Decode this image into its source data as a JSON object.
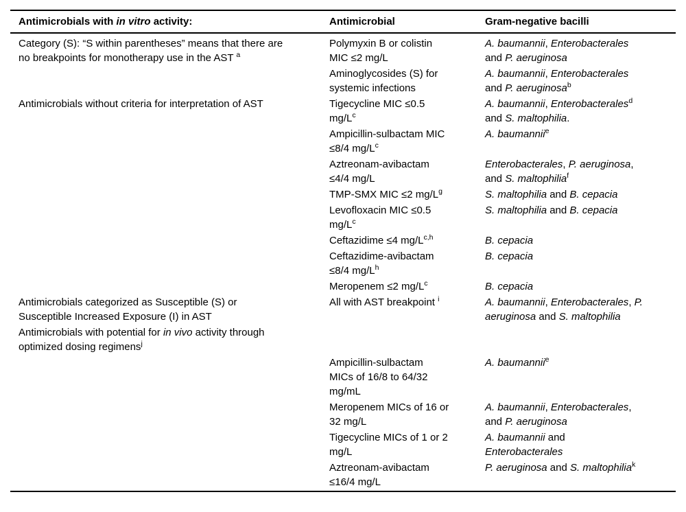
{
  "table": {
    "headers": [
      [
        {
          "t": "Antimicrobials with "
        },
        {
          "t": "in vitro",
          "i": true
        },
        {
          "t": " activity:"
        }
      ],
      [
        {
          "t": "Antimicrobial"
        }
      ],
      [
        {
          "t": "Gram-negative bacilli"
        }
      ]
    ],
    "groups": [
      {
        "label_paragraphs": [
          [
            {
              "t": "Category (S): “S within parentheses” means that there are"
            },
            {
              "br": true
            },
            {
              "t": "no breakpoints for monotherapy use in the AST "
            },
            {
              "t": "a",
              "sup": true
            }
          ]
        ],
        "rows": [
          {
            "antimicrobial": [
              {
                "t": "Polymyxin B or colistin"
              },
              {
                "br": true
              },
              {
                "t": "MIC ≤2 mg/L"
              }
            ],
            "bacilli": [
              {
                "t": "A. baumannii",
                "i": true
              },
              {
                "t": ", "
              },
              {
                "t": "Enterobacterales",
                "i": true
              },
              {
                "br": true
              },
              {
                "t": "and "
              },
              {
                "t": "P. aeruginosa",
                "i": true
              }
            ]
          },
          {
            "antimicrobial": [
              {
                "t": "Aminoglycosides (S) for"
              },
              {
                "br": true
              },
              {
                "t": "systemic infections"
              }
            ],
            "bacilli": [
              {
                "t": "A. baumannii",
                "i": true
              },
              {
                "t": ", "
              },
              {
                "t": "Enterobacterales",
                "i": true
              },
              {
                "br": true
              },
              {
                "t": "and "
              },
              {
                "t": "P. aeruginosa",
                "i": true
              },
              {
                "t": "b",
                "sup": true
              }
            ]
          }
        ]
      },
      {
        "label_paragraphs": [
          [
            {
              "t": "Antimicrobials without criteria for interpretation of AST"
            }
          ]
        ],
        "rows": [
          {
            "antimicrobial": [
              {
                "t": "Tigecycline MIC ≤0.5"
              },
              {
                "br": true
              },
              {
                "t": "mg/L"
              },
              {
                "t": "c",
                "sup": true
              }
            ],
            "bacilli": [
              {
                "t": "A. baumannii",
                "i": true
              },
              {
                "t": ", "
              },
              {
                "t": "Enterobacterales",
                "i": true
              },
              {
                "t": "d",
                "sup": true
              },
              {
                "br": true
              },
              {
                "t": "and "
              },
              {
                "t": "S. maltophilia",
                "i": true
              },
              {
                "t": "."
              }
            ]
          },
          {
            "antimicrobial": [
              {
                "t": "Ampicillin-sulbactam MIC"
              },
              {
                "br": true
              },
              {
                "t": "≤8/4 mg/L"
              },
              {
                "t": "c",
                "sup": true
              }
            ],
            "bacilli": [
              {
                "t": "A. baumannii",
                "i": true
              },
              {
                "t": "e",
                "sup": true
              }
            ]
          },
          {
            "antimicrobial": [
              {
                "t": "Aztreonam-avibactam"
              },
              {
                "br": true
              },
              {
                "t": "≤4/4 mg/L"
              }
            ],
            "bacilli": [
              {
                "t": "Enterobacterales",
                "i": true
              },
              {
                "t": ", "
              },
              {
                "t": "P. aeruginosa",
                "i": true
              },
              {
                "t": ","
              },
              {
                "br": true
              },
              {
                "t": "and "
              },
              {
                "t": "S. maltophilia",
                "i": true
              },
              {
                "t": "f",
                "sup": true
              }
            ]
          },
          {
            "antimicrobial": [
              {
                "t": "TMP-SMX MIC ≤2 mg/L"
              },
              {
                "t": "g",
                "sup": true
              }
            ],
            "bacilli": [
              {
                "t": "S. maltophilia",
                "i": true
              },
              {
                "t": " and "
              },
              {
                "t": "B. cepacia",
                "i": true
              }
            ]
          },
          {
            "antimicrobial": [
              {
                "t": "Levofloxacin MIC ≤0.5"
              },
              {
                "br": true
              },
              {
                "t": "mg/L"
              },
              {
                "t": "c",
                "sup": true
              }
            ],
            "bacilli": [
              {
                "t": "S. maltophilia",
                "i": true
              },
              {
                "t": " and "
              },
              {
                "t": "B. cepacia",
                "i": true
              }
            ]
          },
          {
            "antimicrobial": [
              {
                "t": "Ceftazidime ≤4 mg/L"
              },
              {
                "t": "c,h",
                "sup": true
              }
            ],
            "bacilli": [
              {
                "t": "B. cepacia",
                "i": true
              }
            ]
          },
          {
            "antimicrobial": [
              {
                "t": "Ceftazidime-avibactam"
              },
              {
                "br": true
              },
              {
                "t": "≤8/4 mg/L"
              },
              {
                "t": "h",
                "sup": true
              }
            ],
            "bacilli": [
              {
                "t": "B. cepacia",
                "i": true
              }
            ]
          },
          {
            "antimicrobial": [
              {
                "t": "Meropenem ≤2 mg/L"
              },
              {
                "t": "c",
                "sup": true
              }
            ],
            "bacilli": [
              {
                "t": "B. cepacia",
                "i": true
              }
            ]
          }
        ]
      },
      {
        "label_paragraphs": [
          [
            {
              "t": "Antimicrobials categorized as Susceptible (S) or"
            },
            {
              "br": true
            },
            {
              "t": "Susceptible Increased Exposure (I) in AST"
            }
          ],
          [
            {
              "t": "Antimicrobials with potential for "
            },
            {
              "t": "in vivo",
              "i": true
            },
            {
              "t": " activity through"
            },
            {
              "br": true
            },
            {
              "t": "optimized dosing regimens"
            },
            {
              "t": "j",
              "sup": true
            }
          ]
        ],
        "rows": [
          {
            "antimicrobial": [
              {
                "t": "All with AST breakpoint "
              },
              {
                "t": "i",
                "sup": true
              }
            ],
            "bacilli": [
              {
                "t": "A. baumannii",
                "i": true
              },
              {
                "t": ", "
              },
              {
                "t": "Enterobacterales",
                "i": true
              },
              {
                "t": ", "
              },
              {
                "t": "P.",
                "i": true
              },
              {
                "br": true
              },
              {
                "t": "aeruginosa",
                "i": true
              },
              {
                "t": " and "
              },
              {
                "t": "S. maltophilia",
                "i": true
              }
            ]
          },
          {
            "antimicrobial": [
              {
                "t": "Ampicillin-sulbactam"
              },
              {
                "br": true
              },
              {
                "t": "MICs of 16/8 to 64/32"
              },
              {
                "br": true
              },
              {
                "t": "mg/mL"
              }
            ],
            "bacilli": [
              {
                "t": "A. baumannii",
                "i": true
              },
              {
                "t": "e",
                "sup": true
              }
            ]
          },
          {
            "antimicrobial": [
              {
                "t": "Meropenem MICs of 16 or"
              },
              {
                "br": true
              },
              {
                "t": "32 mg/L"
              }
            ],
            "bacilli": [
              {
                "t": "A. baumannii",
                "i": true
              },
              {
                "t": ", "
              },
              {
                "t": "Enterobacterales",
                "i": true
              },
              {
                "t": ","
              },
              {
                "br": true
              },
              {
                "t": "and "
              },
              {
                "t": "P. aeruginosa",
                "i": true
              }
            ]
          },
          {
            "antimicrobial": [
              {
                "t": "Tigecycline MICs of 1 or 2"
              },
              {
                "br": true
              },
              {
                "t": "mg/L"
              }
            ],
            "bacilli": [
              {
                "t": "A. baumannii",
                "i": true
              },
              {
                "t": " and"
              },
              {
                "br": true
              },
              {
                "t": "Enterobacterales",
                "i": true
              }
            ]
          },
          {
            "antimicrobial": [
              {
                "t": "Aztreonam-avibactam"
              },
              {
                "br": true
              },
              {
                "t": "≤16/4 mg/L"
              }
            ],
            "bacilli": [
              {
                "t": "P. aeruginosa",
                "i": true
              },
              {
                "t": " and "
              },
              {
                "t": "S. maltophilia",
                "i": true
              },
              {
                "t": "k",
                "sup": true
              }
            ]
          }
        ]
      }
    ]
  }
}
